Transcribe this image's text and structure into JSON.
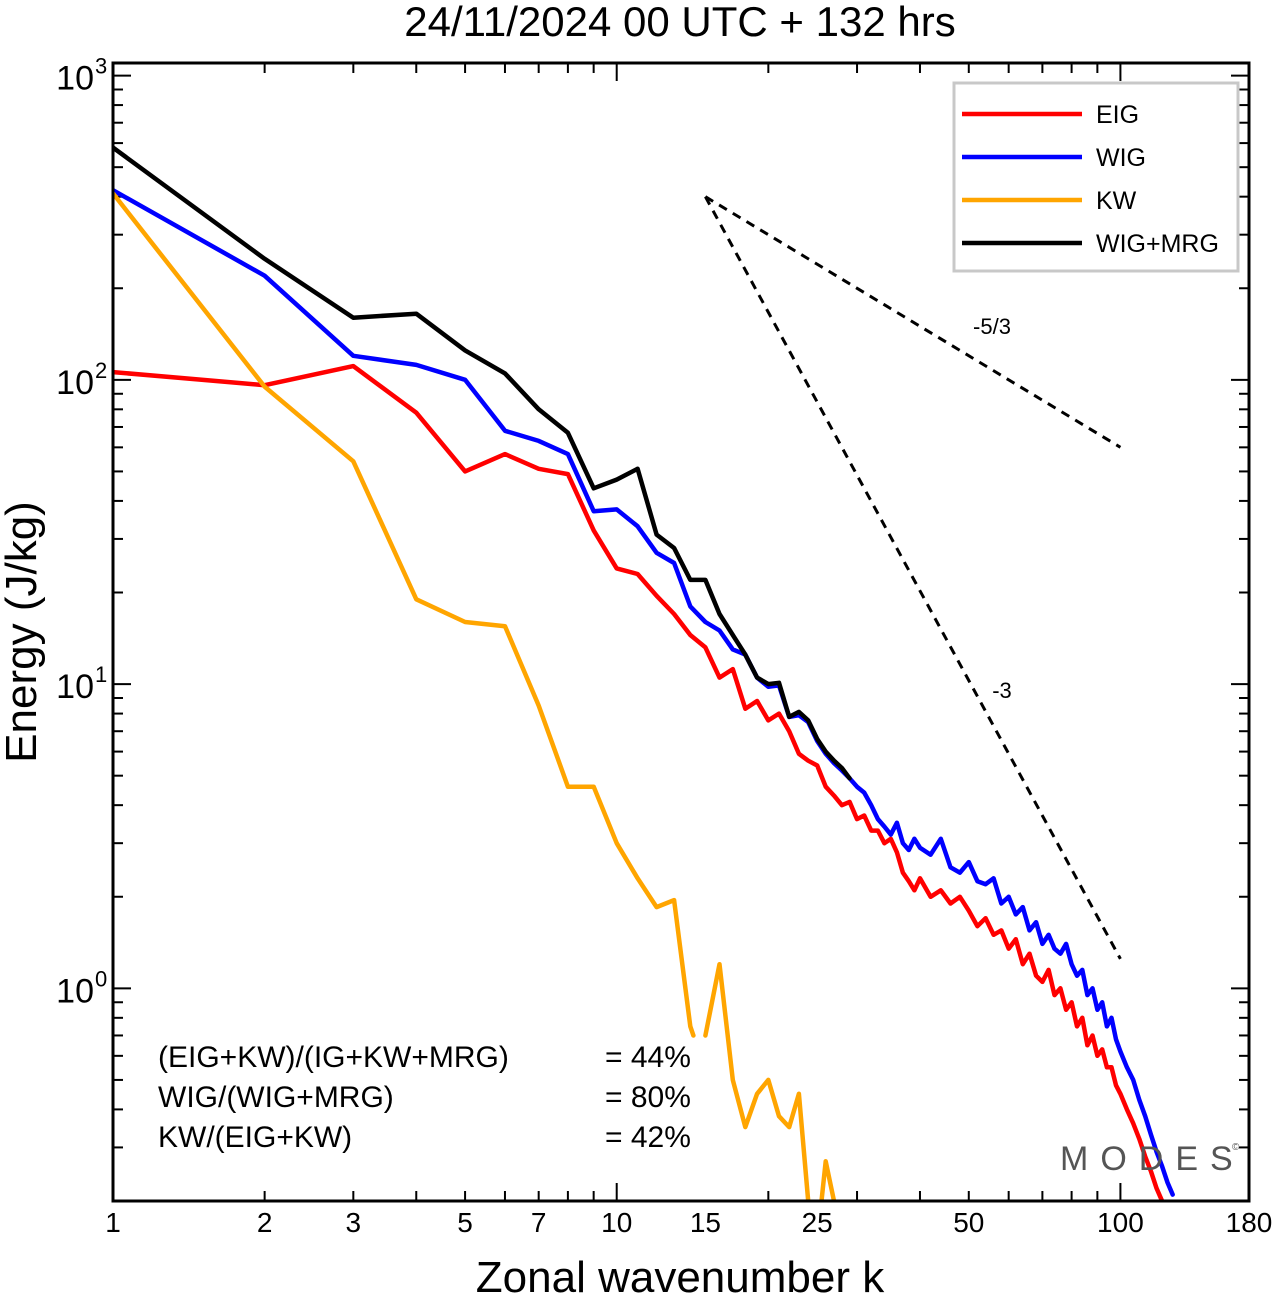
{
  "chart_data": {
    "type": "line",
    "title": "24/11/2024  00 UTC  + 132 hrs",
    "xlabel": "Zonal wavenumber k",
    "ylabel": "Energy (J/kg)",
    "xscale": "log",
    "yscale": "log",
    "xlim": [
      1,
      180
    ],
    "ylim": [
      0.2,
      1100
    ],
    "x_ticks": [
      "1",
      "2",
      "3",
      "5",
      "7",
      "10",
      "15",
      "25",
      "50",
      "100",
      "180"
    ],
    "y_ticks": [
      {
        "base": "10",
        "exp": "0"
      },
      {
        "base": "10",
        "exp": "1"
      },
      {
        "base": "10",
        "exp": "2"
      },
      {
        "base": "10",
        "exp": "3"
      }
    ],
    "legend": {
      "placement": "top-right"
    },
    "series": [
      {
        "name": "EIG",
        "color": "#ff0000",
        "points": [
          [
            1,
            106
          ],
          [
            2,
            96
          ],
          [
            3,
            111
          ],
          [
            4,
            78
          ],
          [
            5,
            50
          ],
          [
            6,
            57
          ],
          [
            7,
            51
          ],
          [
            8,
            49
          ],
          [
            9,
            32
          ],
          [
            10,
            24
          ],
          [
            11,
            23
          ],
          [
            12,
            19.5
          ],
          [
            13,
            17
          ],
          [
            14,
            14.5
          ],
          [
            15,
            13.2
          ],
          [
            16,
            10.5
          ],
          [
            17,
            11.2
          ],
          [
            18,
            8.3
          ],
          [
            19,
            8.8
          ],
          [
            20,
            7.6
          ],
          [
            21,
            8.0
          ],
          [
            22,
            7.0
          ],
          [
            23,
            5.9
          ],
          [
            24,
            5.6
          ],
          [
            25,
            5.4
          ],
          [
            26,
            4.6
          ],
          [
            27,
            4.3
          ],
          [
            28,
            4.0
          ],
          [
            29,
            4.1
          ],
          [
            30,
            3.6
          ],
          [
            31,
            3.7
          ],
          [
            32,
            3.3
          ],
          [
            33,
            3.3
          ],
          [
            34,
            3.0
          ],
          [
            35,
            3.1
          ],
          [
            36,
            2.8
          ],
          [
            37,
            2.4
          ],
          [
            38,
            2.25
          ],
          [
            39,
            2.1
          ],
          [
            40,
            2.3
          ],
          [
            42,
            2.0
          ],
          [
            44,
            2.1
          ],
          [
            46,
            1.9
          ],
          [
            48,
            2.0
          ],
          [
            50,
            1.8
          ],
          [
            52,
            1.6
          ],
          [
            54,
            1.7
          ],
          [
            56,
            1.5
          ],
          [
            58,
            1.55
          ],
          [
            60,
            1.35
          ],
          [
            62,
            1.45
          ],
          [
            64,
            1.2
          ],
          [
            66,
            1.3
          ],
          [
            68,
            1.1
          ],
          [
            70,
            1.05
          ],
          [
            72,
            1.15
          ],
          [
            74,
            0.95
          ],
          [
            76,
            1.0
          ],
          [
            78,
            0.85
          ],
          [
            80,
            0.9
          ],
          [
            82,
            0.75
          ],
          [
            84,
            0.8
          ],
          [
            86,
            0.65
          ],
          [
            88,
            0.7
          ],
          [
            90,
            0.6
          ],
          [
            92,
            0.63
          ],
          [
            94,
            0.55
          ],
          [
            96,
            0.55
          ],
          [
            98,
            0.48
          ],
          [
            100,
            0.45
          ],
          [
            103,
            0.4
          ],
          [
            106,
            0.36
          ],
          [
            109,
            0.32
          ],
          [
            112,
            0.28
          ],
          [
            115,
            0.25
          ],
          [
            118,
            0.22
          ],
          [
            121,
            0.2
          ]
        ]
      },
      {
        "name": "WIG",
        "color": "#0000ff",
        "points": [
          [
            1,
            420
          ],
          [
            2,
            220
          ],
          [
            3,
            120
          ],
          [
            4,
            112
          ],
          [
            5,
            100
          ],
          [
            6,
            68
          ],
          [
            7,
            63
          ],
          [
            8,
            57
          ],
          [
            9,
            37
          ],
          [
            10,
            37.5
          ],
          [
            11,
            33
          ],
          [
            12,
            27
          ],
          [
            13,
            25
          ],
          [
            14,
            18
          ],
          [
            15,
            16
          ],
          [
            16,
            15
          ],
          [
            17,
            13
          ],
          [
            18,
            12.5
          ],
          [
            19,
            10.5
          ],
          [
            20,
            9.8
          ],
          [
            21,
            9.9
          ],
          [
            22,
            7.8
          ],
          [
            23,
            7.9
          ],
          [
            24,
            7.5
          ],
          [
            25,
            6.5
          ],
          [
            26,
            5.9
          ],
          [
            27,
            5.5
          ],
          [
            28,
            5.2
          ],
          [
            29,
            4.9
          ],
          [
            30,
            4.6
          ],
          [
            31,
            4.4
          ],
          [
            32,
            4.0
          ],
          [
            33,
            3.6
          ],
          [
            34,
            3.4
          ],
          [
            35,
            3.2
          ],
          [
            36,
            3.5
          ],
          [
            37,
            3.0
          ],
          [
            38,
            2.85
          ],
          [
            39,
            3.1
          ],
          [
            40,
            2.9
          ],
          [
            42,
            2.75
          ],
          [
            44,
            3.1
          ],
          [
            46,
            2.5
          ],
          [
            48,
            2.4
          ],
          [
            50,
            2.6
          ],
          [
            52,
            2.25
          ],
          [
            54,
            2.2
          ],
          [
            56,
            2.3
          ],
          [
            58,
            1.9
          ],
          [
            60,
            2.0
          ],
          [
            62,
            1.75
          ],
          [
            64,
            1.85
          ],
          [
            66,
            1.55
          ],
          [
            68,
            1.65
          ],
          [
            70,
            1.4
          ],
          [
            72,
            1.5
          ],
          [
            74,
            1.35
          ],
          [
            76,
            1.3
          ],
          [
            78,
            1.4
          ],
          [
            80,
            1.2
          ],
          [
            82,
            1.1
          ],
          [
            84,
            1.15
          ],
          [
            86,
            0.95
          ],
          [
            88,
            1.0
          ],
          [
            90,
            0.85
          ],
          [
            92,
            0.9
          ],
          [
            94,
            0.75
          ],
          [
            96,
            0.8
          ],
          [
            98,
            0.68
          ],
          [
            100,
            0.62
          ],
          [
            103,
            0.55
          ],
          [
            106,
            0.5
          ],
          [
            109,
            0.43
          ],
          [
            112,
            0.38
          ],
          [
            115,
            0.33
          ],
          [
            118,
            0.29
          ],
          [
            121,
            0.26
          ],
          [
            124,
            0.23
          ],
          [
            127,
            0.21
          ]
        ]
      },
      {
        "name": "KW",
        "color": "#ffa500",
        "segments": [
          [
            [
              1,
              410
            ],
            [
              2,
              95
            ],
            [
              3,
              54
            ],
            [
              4,
              19
            ],
            [
              5,
              16
            ],
            [
              6,
              15.5
            ],
            [
              7,
              8.5
            ],
            [
              8,
              4.6
            ],
            [
              9,
              4.6
            ],
            [
              10,
              3.0
            ],
            [
              11,
              2.3
            ],
            [
              12,
              1.85
            ],
            [
              13,
              1.95
            ],
            [
              14,
              0.75
            ],
            [
              14.2,
              0.7
            ]
          ],
          [
            [
              15,
              0.7
            ],
            [
              16,
              1.2
            ],
            [
              17,
              0.5
            ],
            [
              18,
              0.35
            ],
            [
              19,
              0.45
            ],
            [
              20,
              0.5
            ],
            [
              21,
              0.38
            ],
            [
              22,
              0.35
            ],
            [
              23,
              0.45
            ],
            [
              24,
              0.2
            ]
          ],
          [
            [
              25.5,
              0.2
            ],
            [
              26,
              0.27
            ],
            [
              27,
              0.2
            ]
          ]
        ]
      },
      {
        "name": "WIG+MRG",
        "color": "#000000",
        "points": [
          [
            1,
            580
          ],
          [
            2,
            250
          ],
          [
            3,
            160
          ],
          [
            4,
            165
          ],
          [
            5,
            125
          ],
          [
            6,
            105
          ],
          [
            7,
            80
          ],
          [
            8,
            67
          ],
          [
            9,
            44
          ],
          [
            10,
            47
          ],
          [
            11,
            51
          ],
          [
            12,
            31
          ],
          [
            13,
            28
          ],
          [
            14,
            22
          ],
          [
            15,
            22
          ],
          [
            16,
            17
          ],
          [
            17,
            14.5
          ],
          [
            18,
            12.5
          ],
          [
            19,
            10.5
          ],
          [
            20,
            10.0
          ],
          [
            21,
            10.1
          ],
          [
            22,
            7.8
          ],
          [
            23,
            8.1
          ],
          [
            24,
            7.6
          ],
          [
            25,
            6.6
          ],
          [
            26,
            6.0
          ],
          [
            27,
            5.6
          ],
          [
            28,
            5.3
          ],
          [
            29,
            4.9
          ]
        ]
      }
    ],
    "reference_lines": [
      {
        "label": "-5/3",
        "points": [
          [
            15,
            400
          ],
          [
            100,
            60
          ]
        ]
      },
      {
        "label": "-3",
        "points": [
          [
            15,
            400
          ],
          [
            100,
            1.25
          ]
        ]
      }
    ],
    "annotations": [
      {
        "label": "(EIG+KW)/(IG+KW+MRG)",
        "value": "= 44%"
      },
      {
        "label": "WIG/(WIG+MRG)",
        "value": "= 80%"
      },
      {
        "label": "KW/(EIG+KW)",
        "value": "= 42%"
      }
    ],
    "watermark": "MODES"
  }
}
